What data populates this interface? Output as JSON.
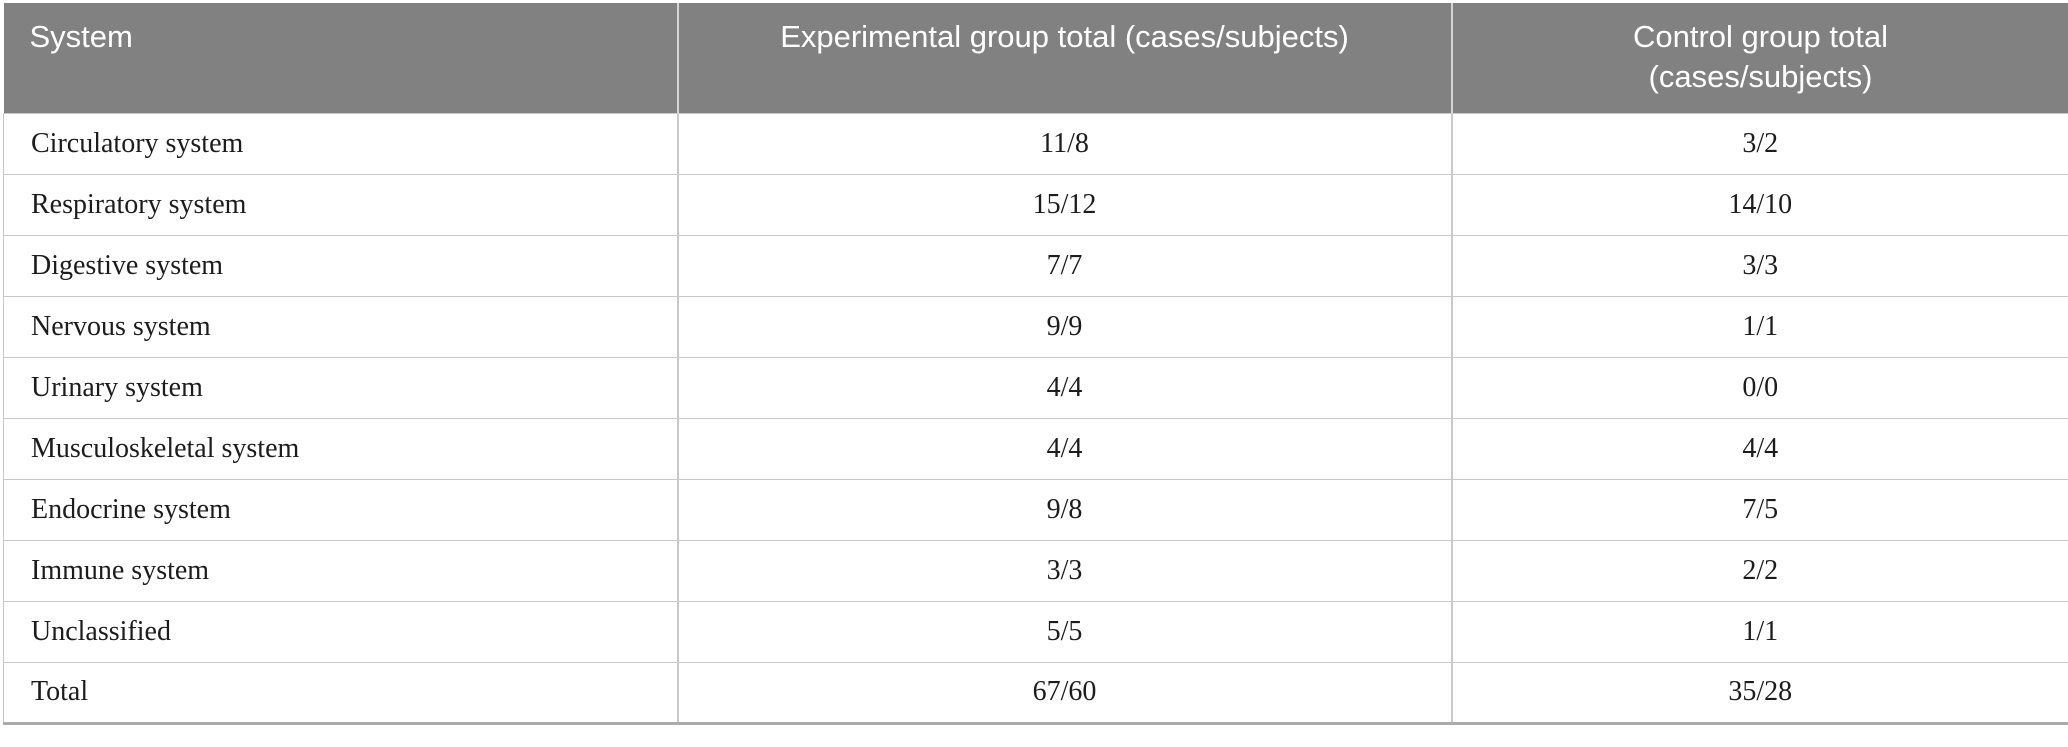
{
  "table": {
    "columns": [
      {
        "label": "System",
        "align": "left"
      },
      {
        "label": "Experimental group total (cases/subjects)",
        "align": "center"
      },
      {
        "label": "Control group total (cases/subjects)",
        "align": "center"
      }
    ],
    "rows": [
      {
        "system": "Circulatory system",
        "experimental": "11/8",
        "control": "3/2"
      },
      {
        "system": "Respiratory system",
        "experimental": "15/12",
        "control": "14/10"
      },
      {
        "system": "Digestive system",
        "experimental": "7/7",
        "control": "3/3"
      },
      {
        "system": "Nervous system",
        "experimental": "9/9",
        "control": "1/1"
      },
      {
        "system": "Urinary system",
        "experimental": "4/4",
        "control": "0/0"
      },
      {
        "system": "Musculoskeletal system",
        "experimental": "4/4",
        "control": "4/4"
      },
      {
        "system": "Endocrine system",
        "experimental": "9/8",
        "control": "7/5"
      },
      {
        "system": "Immune system",
        "experimental": "3/3",
        "control": "2/2"
      },
      {
        "system": "Unclassified",
        "experimental": "5/5",
        "control": "1/1"
      },
      {
        "system": "Total",
        "experimental": "67/60",
        "control": "35/28"
      }
    ]
  },
  "colors": {
    "header_background": "#818181",
    "header_text": "#ffffff",
    "body_text": "#1c1c1c",
    "row_border": "#c9c9c9",
    "bottom_border": "#ababab"
  }
}
